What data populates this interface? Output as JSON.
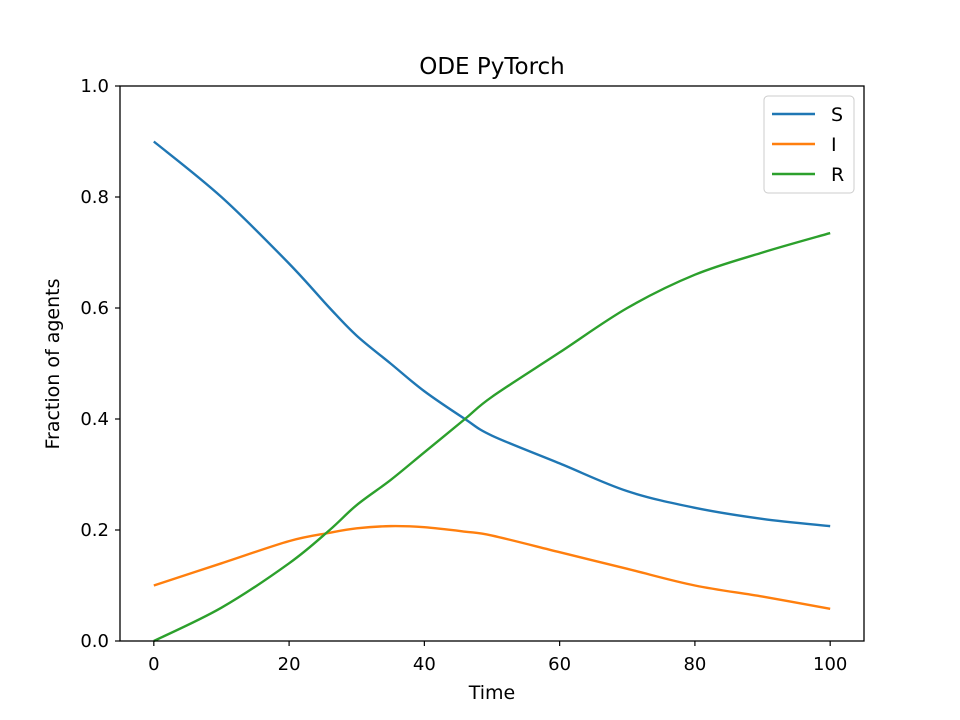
{
  "chart_data": {
    "type": "line",
    "title": "ODE PyTorch",
    "xlabel": "Time",
    "ylabel": "Fraction of agents",
    "xlim": [
      -5,
      105
    ],
    "ylim": [
      0,
      1.0
    ],
    "xticks": [
      0,
      20,
      40,
      60,
      80,
      100
    ],
    "xtick_labels": [
      "0",
      "20",
      "40",
      "60",
      "80",
      "100"
    ],
    "yticks": [
      0,
      0.2,
      0.4,
      0.6,
      0.8,
      1.0
    ],
    "ytick_labels": [
      "0.0",
      "0.2",
      "0.4",
      "0.6",
      "0.8",
      "1.0"
    ],
    "grid": false,
    "legend_position": "top-right",
    "x": [
      0,
      10,
      20,
      26,
      30,
      35,
      40,
      46,
      50,
      60,
      70,
      80,
      90,
      100
    ],
    "series": [
      {
        "name": "S",
        "color": "#1f77b4",
        "values": [
          0.9,
          0.8,
          0.68,
          0.6,
          0.55,
          0.5,
          0.45,
          0.4,
          0.37,
          0.32,
          0.27,
          0.24,
          0.22,
          0.207
        ]
      },
      {
        "name": "I",
        "color": "#ff7f0e",
        "values": [
          0.1,
          0.14,
          0.18,
          0.195,
          0.203,
          0.207,
          0.205,
          0.197,
          0.19,
          0.16,
          0.13,
          0.1,
          0.08,
          0.058
        ]
      },
      {
        "name": "R",
        "color": "#2ca02c",
        "values": [
          0.0,
          0.06,
          0.14,
          0.2,
          0.245,
          0.29,
          0.34,
          0.4,
          0.44,
          0.52,
          0.6,
          0.66,
          0.7,
          0.735
        ]
      }
    ]
  }
}
